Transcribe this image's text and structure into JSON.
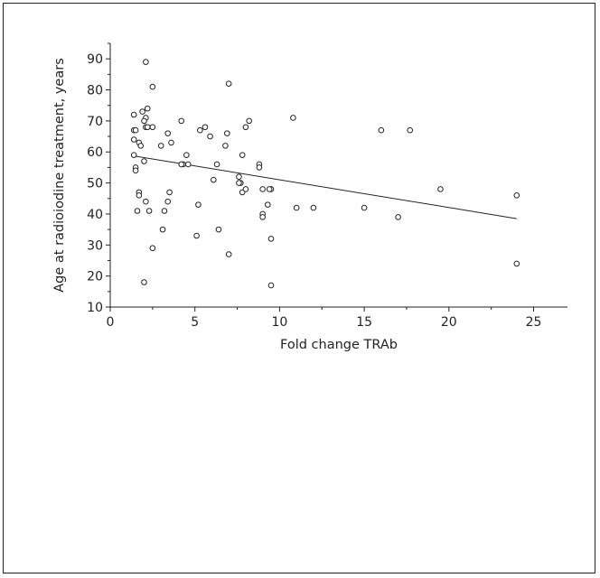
{
  "chart_data": {
    "type": "scatter",
    "title": "",
    "xlabel": "Fold change TRAb",
    "ylabel": "Age at radioiodine treatment, years",
    "xlim": [
      0,
      27
    ],
    "ylim": [
      10,
      95
    ],
    "xticks": [
      0,
      5,
      10,
      15,
      20,
      25
    ],
    "yticks": [
      10,
      20,
      30,
      40,
      50,
      60,
      70,
      80,
      90
    ],
    "grid": false,
    "legend": "none",
    "marker": "open-circle",
    "colors": {
      "points": "#222222",
      "line": "#222222",
      "axes": "#222222"
    },
    "series": [
      {
        "x": [
          2.1,
          2.5,
          7.0,
          2.2,
          10.8,
          1.4,
          1.4,
          1.9,
          2.1,
          2.0,
          2.1,
          2.2,
          2.5,
          1.4,
          1.5,
          1.4,
          1.7,
          1.8,
          1.5,
          1.5,
          1.7,
          2.0,
          1.7,
          2.1,
          2.3,
          1.6,
          2.0,
          2.5,
          3.0,
          3.1,
          3.4,
          3.6,
          3.5,
          3.4,
          3.2,
          4.2,
          4.3,
          4.5,
          4.6,
          4.2,
          5.3,
          5.6,
          5.9,
          5.2,
          5.1,
          6.3,
          6.8,
          6.9,
          6.1,
          6.4,
          7.0,
          7.8,
          8.0,
          8.2,
          7.6,
          7.7,
          7.8,
          8.0,
          7.6,
          8.8,
          8.8,
          9.0,
          9.0,
          9.5,
          9.3,
          9.0,
          9.5,
          9.4,
          9.5,
          11.0,
          12.0,
          15.0,
          16.0,
          17.7,
          17.0,
          19.5,
          24.0,
          24.0
        ],
        "y": [
          89,
          81,
          82,
          74,
          71,
          72,
          67,
          73,
          71,
          70,
          68,
          68,
          68,
          64,
          67,
          59,
          63,
          62,
          55,
          54,
          47,
          57,
          46,
          44,
          41,
          41,
          18,
          29,
          62,
          35,
          66,
          63,
          47,
          44,
          41,
          70,
          56,
          59,
          56,
          56,
          67,
          68,
          65,
          43,
          33,
          56,
          62,
          66,
          51,
          35,
          27,
          59,
          68,
          70,
          52,
          50,
          47,
          48,
          50,
          56,
          55,
          48,
          40,
          48,
          43,
          39,
          32,
          48,
          17,
          42,
          42,
          42,
          67,
          67,
          39,
          48,
          46,
          24
        ]
      }
    ],
    "trendline": {
      "x": [
        1.3,
        24.0
      ],
      "y": [
        58.8,
        38.5
      ]
    }
  }
}
